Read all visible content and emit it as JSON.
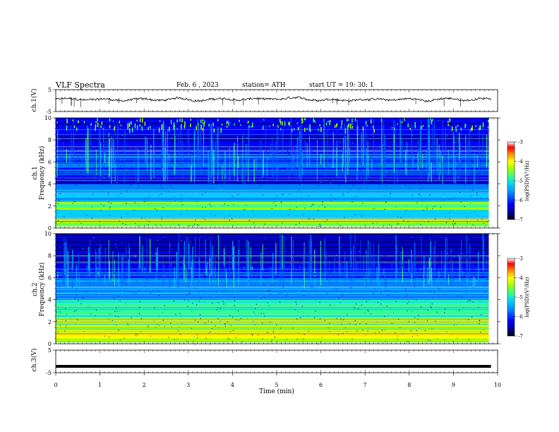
{
  "header": {
    "title": "VLF  Spectra",
    "date": "Feb. 6  , 2023",
    "station": "station= ATH",
    "start": "start  UT  =   19: 30: 1"
  },
  "colors": {
    "colormap": [
      "#000000",
      "#00008c",
      "#0000ff",
      "#0080ff",
      "#00d0ff",
      "#30ff90",
      "#a0ff00",
      "#ffff00",
      "#ff8000",
      "#ff0000",
      "#ffffff"
    ]
  },
  "chart_data": [
    {
      "type": "line",
      "ylabel": "ch.1(V)",
      "ylim": [
        -5,
        5
      ],
      "yticks": [
        "5",
        "-5"
      ],
      "xlim": [
        0,
        10
      ],
      "description_level": "fluctuating noise trace around +0.5 V",
      "series": [
        {
          "baseline": 0.5,
          "amplitude": 1.0
        }
      ]
    },
    {
      "type": "heatmap",
      "ylabel": "ch.1\nFrequency  (kHz)",
      "ylim": [
        0,
        10
      ],
      "yticks": [
        "0",
        "2",
        "4",
        "6",
        "8",
        "10"
      ],
      "xlim": [
        0,
        10
      ],
      "data_extent_min": 9.8,
      "colorbar": {
        "label": "log(PSD)(V²/Hz)",
        "min": -7,
        "max": -3,
        "ticks": [
          "-3",
          "-4",
          "-5",
          "-6",
          "-7"
        ]
      }
    },
    {
      "type": "heatmap",
      "ylabel": "ch.2\nFrequency  (kHz)",
      "ylim": [
        0,
        10
      ],
      "yticks": [
        "0",
        "2",
        "4",
        "6",
        "8",
        "10"
      ],
      "xlim": [
        0,
        10
      ],
      "data_extent_min": 9.8,
      "colorbar": {
        "label": "log(PSD)(V²/Hz)",
        "min": -7,
        "max": -3,
        "ticks": [
          "-3",
          "-4",
          "-5",
          "-6",
          "-7"
        ]
      }
    },
    {
      "type": "line",
      "ylabel": "ch.3(V)",
      "ylim": [
        -5,
        5
      ],
      "yticks": [
        "5",
        "-5"
      ],
      "xlim": [
        0,
        10
      ],
      "series": [
        {
          "baseline": -2.2,
          "amplitude": 0
        }
      ],
      "xlabel": "Time  (min)",
      "xticks": [
        "0",
        "1",
        "2",
        "3",
        "4",
        "5",
        "6",
        "7",
        "8",
        "9",
        "10"
      ]
    }
  ]
}
